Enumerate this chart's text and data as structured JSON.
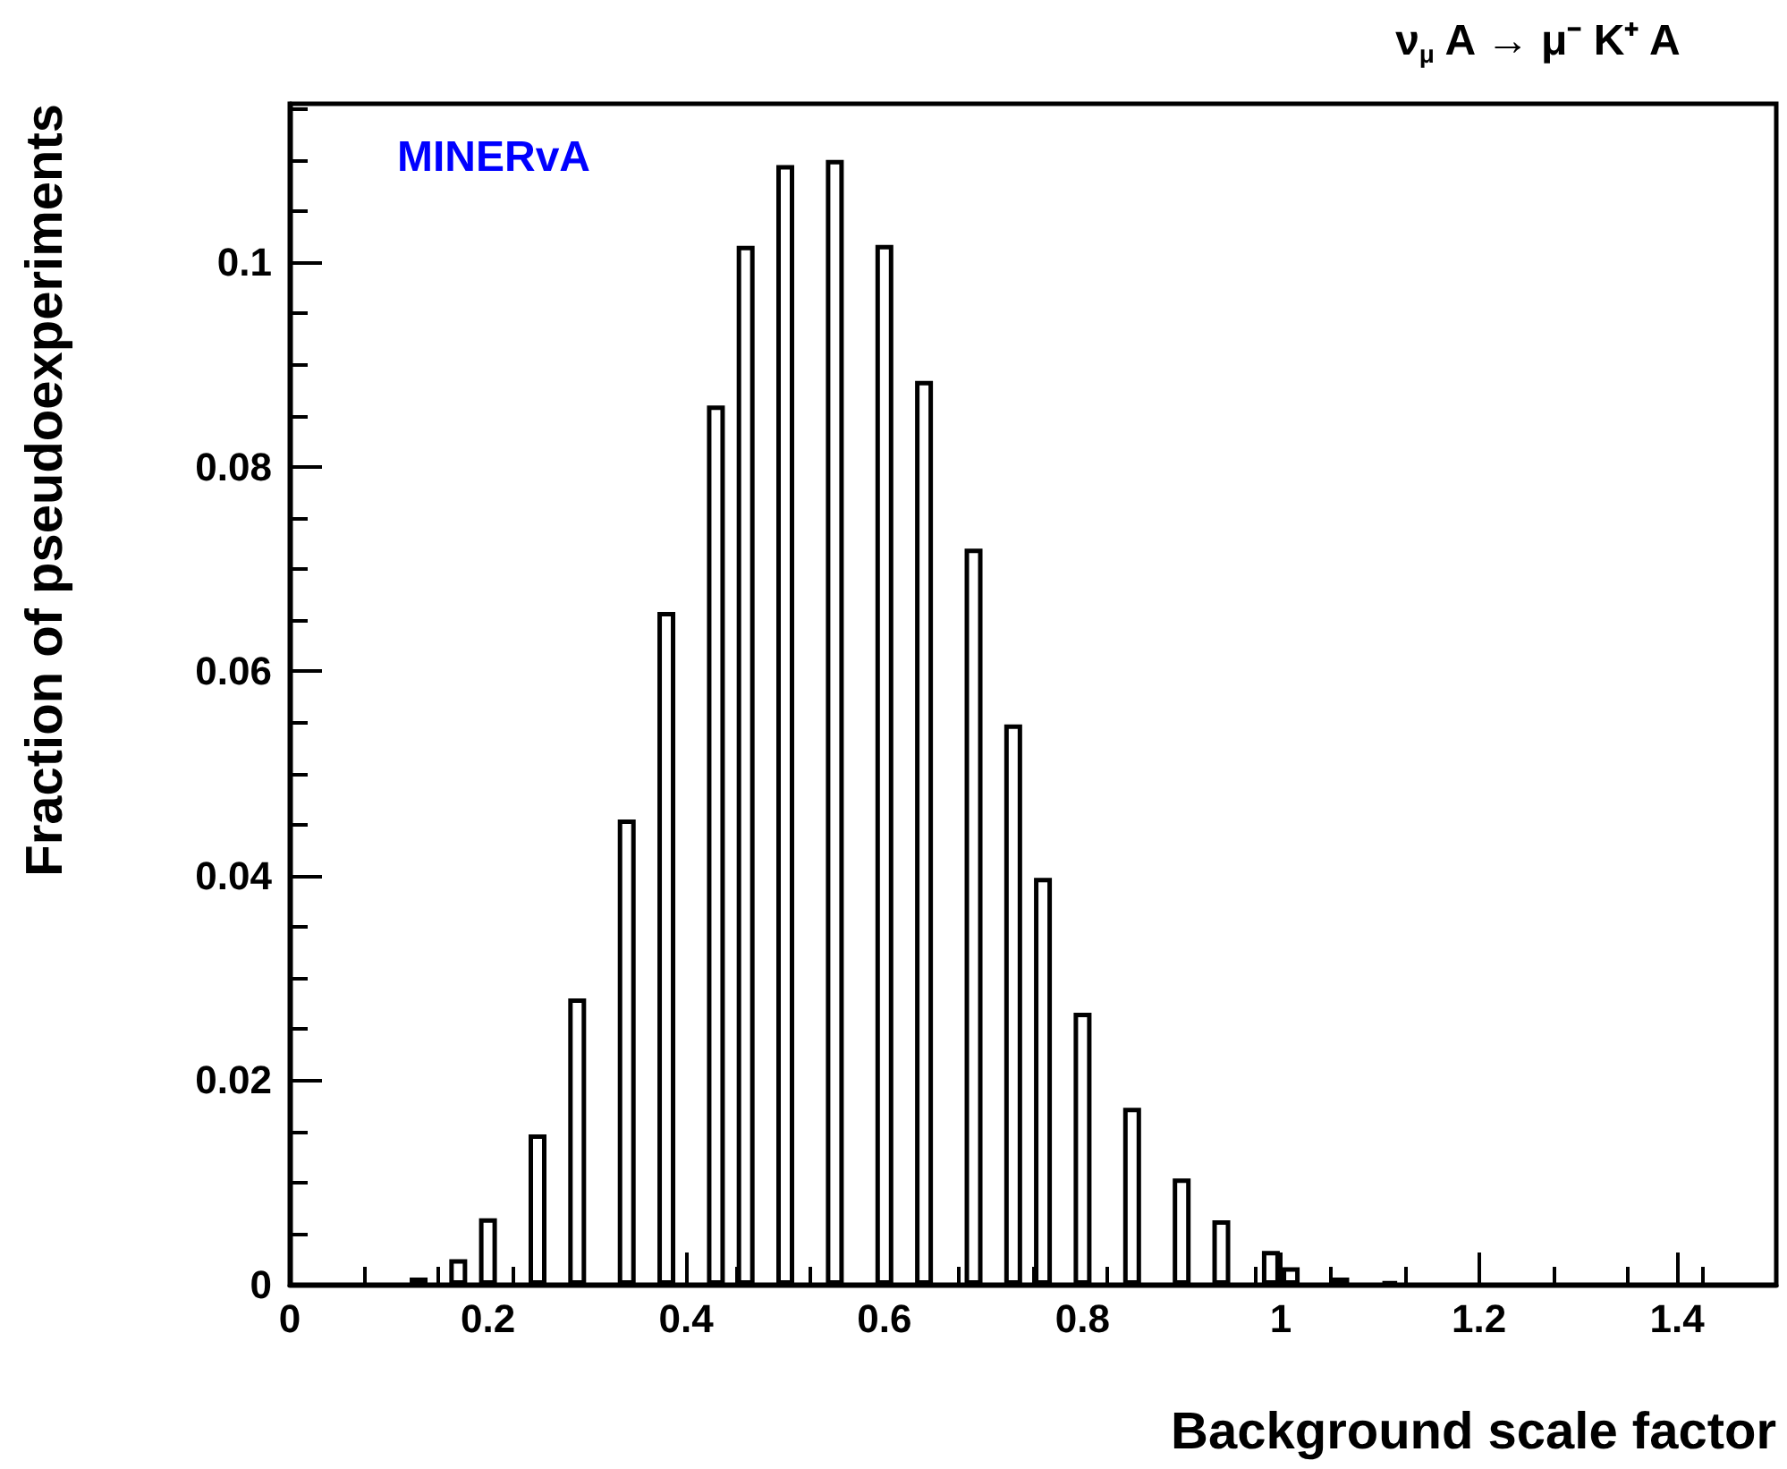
{
  "chart_data": {
    "type": "bar",
    "title": "ν$_{μ}$ A → μ⁻ K⁺ A",
    "xlabel": "Background scale factor",
    "ylabel": "Fraction of pseudoexperiments",
    "annotations": [
      "MINERvA"
    ],
    "x": [
      0.13,
      0.17,
      0.2,
      0.25,
      0.29,
      0.34,
      0.38,
      0.43,
      0.46,
      0.5,
      0.55,
      0.6,
      0.64,
      0.69,
      0.73,
      0.76,
      0.8,
      0.85,
      0.9,
      0.94,
      0.99,
      1.01,
      1.06,
      1.11
    ],
    "values": [
      0.0007,
      0.0025,
      0.0065,
      0.0147,
      0.028,
      0.0455,
      0.0658,
      0.086,
      0.1016,
      0.1095,
      0.11,
      0.1017,
      0.0884,
      0.072,
      0.0548,
      0.0398,
      0.0266,
      0.0173,
      0.0104,
      0.0063,
      0.0033,
      0.0017,
      0.0007,
      0.0003
    ],
    "color": "#000000",
    "xlim": [
      0,
      1.5
    ],
    "xticks": [
      0,
      0.2,
      0.4,
      0.6,
      0.8,
      1,
      1.2,
      1.4
    ],
    "ylim": [
      0,
      0.1155
    ],
    "yticks": [
      0,
      0.02,
      0.04,
      0.06,
      0.08,
      0.1
    ],
    "grid": false
  }
}
